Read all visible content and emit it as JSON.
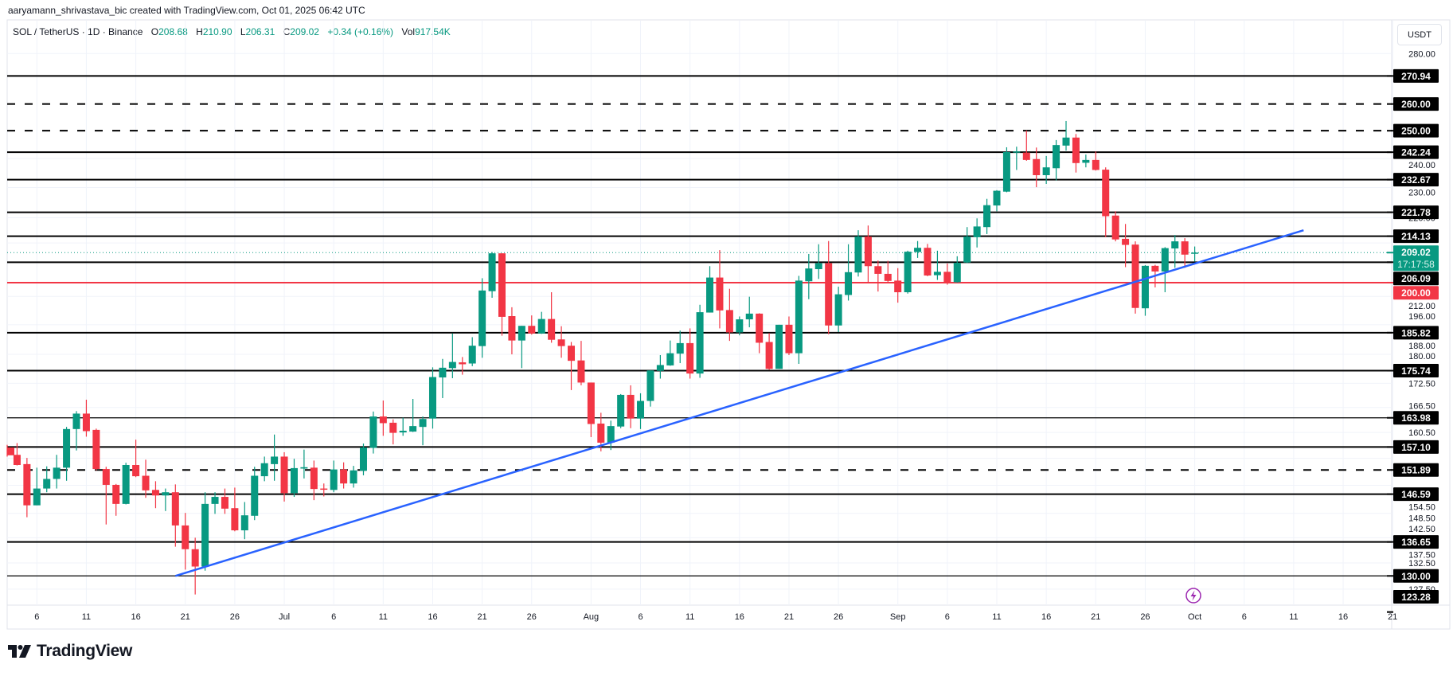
{
  "credit": "aaryamann_shrivastava_bic created with TradingView.com, Oct 01, 2025 06:42 UTC",
  "legend": {
    "symbol": "SOL / TetherUS · 1D · Binance",
    "o_label": "O",
    "o": "208.68",
    "h_label": "H",
    "h": "210.90",
    "l_label": "L",
    "l": "206.31",
    "c_label": "C",
    "c": "209.02",
    "change": "+0.34 (+0.16%)",
    "vol_label": "Vol",
    "vol": "917.54K"
  },
  "currency_button": "USDT",
  "brand": "TradingView",
  "event_icon": "lightning-icon",
  "colors": {
    "up": "#089981",
    "down": "#f23645",
    "trendline": "#2962ff",
    "level": "#000000",
    "level_red": "#f23645",
    "event": "#9c27b0"
  },
  "chart_data": {
    "type": "candlestick",
    "title": "",
    "xlabel": "",
    "ylabel": "",
    "y_scale": "log",
    "grid": true,
    "ylim": [
      123.28,
      280.0
    ],
    "candles_columns": [
      "date",
      "open",
      "high",
      "low",
      "close"
    ],
    "candles": [
      [
        "2025-06-03",
        157.0,
        157.6,
        154.9,
        155.2
      ],
      [
        "2025-06-04",
        155.3,
        158.0,
        152.9,
        153.0
      ],
      [
        "2025-06-05",
        153.2,
        154.6,
        141.7,
        144.2
      ],
      [
        "2025-06-06",
        144.2,
        152.4,
        144.2,
        147.8
      ],
      [
        "2025-06-07",
        147.8,
        152.7,
        147.0,
        149.9
      ],
      [
        "2025-06-08",
        149.9,
        155.3,
        147.8,
        152.4
      ],
      [
        "2025-06-09",
        152.4,
        161.8,
        149.5,
        161.3
      ],
      [
        "2025-06-10",
        161.3,
        165.6,
        156.3,
        165.0
      ],
      [
        "2025-06-11",
        165.0,
        168.4,
        159.5,
        160.8
      ],
      [
        "2025-06-12",
        161.1,
        161.4,
        151.8,
        152.1
      ],
      [
        "2025-06-13",
        152.1,
        152.6,
        140.2,
        148.6
      ],
      [
        "2025-06-14",
        148.6,
        148.8,
        142.0,
        144.5
      ],
      [
        "2025-06-15",
        144.5,
        153.5,
        144.4,
        153.0
      ],
      [
        "2025-06-16",
        153.0,
        158.8,
        150.3,
        150.5
      ],
      [
        "2025-06-17",
        150.6,
        154.2,
        145.8,
        147.4
      ],
      [
        "2025-06-18",
        147.5,
        149.4,
        143.6,
        146.3
      ],
      [
        "2025-06-19",
        146.3,
        147.8,
        143.0,
        147.0
      ],
      [
        "2025-06-20",
        147.0,
        148.7,
        135.7,
        140.0
      ],
      [
        "2025-06-21",
        140.0,
        142.6,
        131.2,
        135.2
      ],
      [
        "2025-06-22",
        135.2,
        137.5,
        126.5,
        131.8
      ],
      [
        "2025-06-23",
        131.8,
        147.0,
        131.0,
        144.5
      ],
      [
        "2025-06-24",
        144.5,
        147.0,
        142.4,
        146.0
      ],
      [
        "2025-06-25",
        146.0,
        147.8,
        142.4,
        143.5
      ],
      [
        "2025-06-26",
        143.6,
        148.0,
        138.8,
        139.0
      ],
      [
        "2025-06-27",
        139.0,
        144.9,
        137.2,
        142.1
      ],
      [
        "2025-06-28",
        142.0,
        152.6,
        141.1,
        150.6
      ],
      [
        "2025-06-29",
        150.5,
        154.9,
        149.4,
        153.4
      ],
      [
        "2025-06-30",
        153.2,
        160.0,
        149.5,
        154.9
      ],
      [
        "2025-07-01",
        154.9,
        155.9,
        145.0,
        146.8
      ],
      [
        "2025-07-02",
        146.8,
        154.4,
        146.0,
        152.3
      ],
      [
        "2025-07-03",
        152.2,
        156.5,
        150.0,
        152.5
      ],
      [
        "2025-07-04",
        152.4,
        154.0,
        145.3,
        147.7
      ],
      [
        "2025-07-05",
        147.8,
        148.9,
        146.1,
        147.7
      ],
      [
        "2025-07-06",
        147.5,
        154.0,
        147.0,
        152.0
      ],
      [
        "2025-07-07",
        152.0,
        153.6,
        147.8,
        148.9
      ],
      [
        "2025-07-08",
        148.9,
        152.8,
        148.0,
        151.8
      ],
      [
        "2025-07-09",
        151.7,
        157.9,
        150.7,
        157.0
      ],
      [
        "2025-07-10",
        156.9,
        165.5,
        155.6,
        164.3
      ],
      [
        "2025-07-11",
        164.3,
        168.2,
        159.7,
        162.7
      ],
      [
        "2025-07-12",
        162.8,
        163.6,
        157.7,
        160.4
      ],
      [
        "2025-07-13",
        160.5,
        164.0,
        159.7,
        160.9
      ],
      [
        "2025-07-14",
        160.7,
        168.6,
        160.6,
        162.0
      ],
      [
        "2025-07-15",
        161.8,
        164.3,
        157.5,
        163.7
      ],
      [
        "2025-07-16",
        163.8,
        176.6,
        161.4,
        174.1
      ],
      [
        "2025-07-17",
        174.0,
        178.8,
        168.8,
        176.5
      ],
      [
        "2025-07-18",
        176.4,
        185.6,
        173.8,
        178.0
      ],
      [
        "2025-07-19",
        177.9,
        179.3,
        174.7,
        177.4
      ],
      [
        "2025-07-20",
        177.6,
        184.6,
        176.9,
        182.3
      ],
      [
        "2025-07-21",
        182.2,
        201.3,
        179.1,
        197.7
      ],
      [
        "2025-07-22",
        197.5,
        209.2,
        195.6,
        208.8
      ],
      [
        "2025-07-23",
        208.8,
        208.8,
        185.0,
        190.2
      ],
      [
        "2025-07-24",
        190.4,
        192.9,
        180.0,
        183.7
      ],
      [
        "2025-07-25",
        183.7,
        187.7,
        176.4,
        187.7
      ],
      [
        "2025-07-26",
        187.7,
        190.6,
        185.3,
        185.6
      ],
      [
        "2025-07-27",
        185.6,
        191.6,
        185.5,
        189.6
      ],
      [
        "2025-07-28",
        189.6,
        197.2,
        183.1,
        183.9
      ],
      [
        "2025-07-29",
        184.0,
        187.6,
        179.1,
        182.2
      ],
      [
        "2025-07-30",
        182.3,
        183.3,
        170.8,
        178.3
      ],
      [
        "2025-07-31",
        178.4,
        183.6,
        172.0,
        172.7
      ],
      [
        "2025-08-01",
        172.7,
        172.7,
        159.4,
        162.5
      ],
      [
        "2025-08-02",
        162.6,
        165.2,
        156.1,
        158.1
      ],
      [
        "2025-08-03",
        158.1,
        163.3,
        156.4,
        162.0
      ],
      [
        "2025-08-04",
        161.9,
        169.8,
        161.5,
        169.6
      ],
      [
        "2025-08-05",
        169.6,
        172.0,
        161.5,
        163.8
      ],
      [
        "2025-08-06",
        163.8,
        170.0,
        161.3,
        168.1
      ],
      [
        "2025-08-07",
        168.1,
        175.8,
        166.7,
        175.8
      ],
      [
        "2025-08-08",
        175.7,
        179.8,
        173.7,
        177.2
      ],
      [
        "2025-08-09",
        177.1,
        183.7,
        177.0,
        180.3
      ],
      [
        "2025-08-10",
        180.2,
        186.4,
        177.7,
        183.0
      ],
      [
        "2025-08-11",
        183.0,
        187.0,
        173.7,
        175.0
      ],
      [
        "2025-08-12",
        175.0,
        193.6,
        173.9,
        191.5
      ],
      [
        "2025-08-13",
        191.4,
        204.9,
        191.4,
        201.5
      ],
      [
        "2025-08-14",
        201.5,
        209.8,
        187.0,
        192.0
      ],
      [
        "2025-08-15",
        192.1,
        198.2,
        183.6,
        185.9
      ],
      [
        "2025-08-16",
        185.9,
        190.3,
        185.1,
        189.5
      ],
      [
        "2025-08-17",
        189.5,
        195.9,
        187.3,
        191.1
      ],
      [
        "2025-08-18",
        191.1,
        191.2,
        180.3,
        183.1
      ],
      [
        "2025-08-19",
        183.3,
        185.7,
        176.0,
        176.2
      ],
      [
        "2025-08-20",
        176.2,
        188.0,
        176.2,
        188.0
      ],
      [
        "2025-08-21",
        188.0,
        190.3,
        179.8,
        180.3
      ],
      [
        "2025-08-22",
        180.3,
        202.0,
        177.5,
        200.6
      ],
      [
        "2025-08-23",
        200.4,
        208.6,
        195.2,
        204.2
      ],
      [
        "2025-08-24",
        204.0,
        211.6,
        201.1,
        205.8
      ],
      [
        "2025-08-25",
        205.8,
        212.6,
        185.4,
        187.8
      ],
      [
        "2025-08-26",
        187.8,
        198.8,
        186.0,
        196.6
      ],
      [
        "2025-08-27",
        196.4,
        211.6,
        194.8,
        203.1
      ],
      [
        "2025-08-28",
        203.0,
        216.0,
        201.8,
        214.0
      ],
      [
        "2025-08-29",
        214.0,
        217.5,
        199.8,
        204.9
      ],
      [
        "2025-08-30",
        204.9,
        206.6,
        197.4,
        202.6
      ],
      [
        "2025-08-31",
        202.6,
        206.5,
        200.2,
        200.5
      ],
      [
        "2025-09-01",
        200.6,
        204.3,
        194.2,
        197.2
      ],
      [
        "2025-09-02",
        197.2,
        209.6,
        196.8,
        209.3
      ],
      [
        "2025-09-03",
        209.2,
        212.6,
        207.4,
        210.5
      ],
      [
        "2025-09-04",
        210.5,
        211.7,
        201.9,
        202.1
      ],
      [
        "2025-09-05",
        202.2,
        209.6,
        200.8,
        203.2
      ],
      [
        "2025-09-06",
        203.2,
        205.7,
        199.4,
        200.0
      ],
      [
        "2025-09-07",
        200.1,
        207.9,
        200.0,
        205.9
      ],
      [
        "2025-09-08",
        206.0,
        217.0,
        205.8,
        214.0
      ],
      [
        "2025-09-09",
        213.8,
        219.8,
        210.6,
        217.2
      ],
      [
        "2025-09-10",
        217.0,
        226.2,
        214.8,
        224.1
      ],
      [
        "2025-09-11",
        224.0,
        229.1,
        222.1,
        228.9
      ],
      [
        "2025-09-12",
        228.6,
        244.0,
        228.4,
        242.3
      ],
      [
        "2025-09-13",
        242.3,
        244.2,
        236.0,
        242.5
      ],
      [
        "2025-09-14",
        242.1,
        250.1,
        239.2,
        239.5
      ],
      [
        "2025-09-15",
        239.8,
        243.9,
        230.1,
        234.2
      ],
      [
        "2025-09-16",
        234.2,
        240.9,
        231.2,
        236.9
      ],
      [
        "2025-09-17",
        236.6,
        246.6,
        232.4,
        244.8
      ],
      [
        "2025-09-18",
        244.6,
        253.6,
        242.8,
        247.5
      ],
      [
        "2025-09-19",
        247.5,
        248.8,
        235.1,
        238.4
      ],
      [
        "2025-09-20",
        238.5,
        241.4,
        236.9,
        239.5
      ],
      [
        "2025-09-21",
        239.5,
        242.5,
        235.8,
        236.0
      ],
      [
        "2025-09-22",
        236.1,
        236.9,
        213.8,
        220.5
      ],
      [
        "2025-09-23",
        220.7,
        222.1,
        212.5,
        213.1
      ],
      [
        "2025-09-24",
        213.3,
        218.0,
        204.6,
        211.4
      ],
      [
        "2025-09-25",
        211.5,
        212.5,
        191.1,
        192.7
      ],
      [
        "2025-09-26",
        192.6,
        205.2,
        190.5,
        205.0
      ],
      [
        "2025-09-27",
        205.0,
        205.3,
        198.6,
        203.3
      ],
      [
        "2025-09-28",
        203.3,
        210.7,
        197.2,
        210.4
      ],
      [
        "2025-09-29",
        210.3,
        214.5,
        204.4,
        212.5
      ],
      [
        "2025-09-30",
        212.5,
        213.5,
        204.4,
        208.4
      ],
      [
        "2025-10-01",
        208.68,
        210.9,
        206.31,
        209.02
      ]
    ],
    "levels": [
      {
        "price": 270.94,
        "label": "270.94",
        "style": "solid",
        "color": "#000000"
      },
      {
        "price": 260.0,
        "label": "260.00",
        "style": "dashed",
        "color": "#000000"
      },
      {
        "price": 250.0,
        "label": "250.00",
        "style": "dashed",
        "color": "#000000"
      },
      {
        "price": 242.24,
        "label": "242.24",
        "style": "solid",
        "color": "#000000"
      },
      {
        "price": 232.67,
        "label": "232.67",
        "style": "solid",
        "color": "#000000"
      },
      {
        "price": 221.78,
        "label": "221.78",
        "style": "solid",
        "color": "#000000"
      },
      {
        "price": 214.13,
        "label": "214.13",
        "style": "solid",
        "color": "#000000"
      },
      {
        "price": 206.09,
        "label": "206.09",
        "style": "solid",
        "color": "#000000"
      },
      {
        "price": 200.0,
        "label": "200.00",
        "style": "solid",
        "color": "#f23645"
      },
      {
        "price": 185.82,
        "label": "185.82",
        "style": "solid",
        "color": "#000000"
      },
      {
        "price": 175.74,
        "label": "175.74",
        "style": "solid",
        "color": "#000000"
      },
      {
        "price": 163.98,
        "label": "163.98",
        "style": "thin",
        "color": "#000000"
      },
      {
        "price": 157.1,
        "label": "157.10",
        "style": "solid",
        "color": "#000000"
      },
      {
        "price": 151.89,
        "label": "151.89",
        "style": "dashed",
        "color": "#000000"
      },
      {
        "price": 146.59,
        "label": "146.59",
        "style": "solid",
        "color": "#000000"
      },
      {
        "price": 136.65,
        "label": "136.65",
        "style": "solid",
        "color": "#000000"
      },
      {
        "price": 130.0,
        "label": "130.00",
        "style": "thin",
        "color": "#000000"
      },
      {
        "price": 123.28,
        "label": "123.28",
        "style": "offscreen",
        "color": "#000000"
      }
    ],
    "current_price": {
      "price": 209.02,
      "label": "209.02",
      "countdown": "17:17:58",
      "color": "#089981"
    },
    "trendline": {
      "points": [
        {
          "date": "2025-06-20",
          "price": 130.0
        },
        {
          "date": "2025-10-12",
          "price": 216.0
        }
      ],
      "color": "#2962ff"
    },
    "event_marker": {
      "date": "2025-10-01"
    },
    "y_ticks": [
      "280.00",
      "240.00",
      "230.00",
      "220.00",
      "212.00",
      "196.00",
      "188.00",
      "180.00",
      "172.50",
      "166.50",
      "160.50",
      "154.50",
      "148.50",
      "142.50",
      "137.50",
      "132.50",
      "127.50"
    ],
    "x_ticks": [
      {
        "label": "6",
        "date": "2025-06-06"
      },
      {
        "label": "11",
        "date": "2025-06-11"
      },
      {
        "label": "16",
        "date": "2025-06-16"
      },
      {
        "label": "21",
        "date": "2025-06-21"
      },
      {
        "label": "26",
        "date": "2025-06-26"
      },
      {
        "label": "Jul",
        "date": "2025-07-01"
      },
      {
        "label": "6",
        "date": "2025-07-06"
      },
      {
        "label": "11",
        "date": "2025-07-11"
      },
      {
        "label": "16",
        "date": "2025-07-16"
      },
      {
        "label": "21",
        "date": "2025-07-21"
      },
      {
        "label": "26",
        "date": "2025-07-26"
      },
      {
        "label": "Aug",
        "date": "2025-08-01"
      },
      {
        "label": "6",
        "date": "2025-08-06"
      },
      {
        "label": "11",
        "date": "2025-08-11"
      },
      {
        "label": "16",
        "date": "2025-08-16"
      },
      {
        "label": "21",
        "date": "2025-08-21"
      },
      {
        "label": "26",
        "date": "2025-08-26"
      },
      {
        "label": "Sep",
        "date": "2025-09-01"
      },
      {
        "label": "6",
        "date": "2025-09-06"
      },
      {
        "label": "11",
        "date": "2025-09-11"
      },
      {
        "label": "16",
        "date": "2025-09-16"
      },
      {
        "label": "21",
        "date": "2025-09-21"
      },
      {
        "label": "26",
        "date": "2025-09-26"
      },
      {
        "label": "Oct",
        "date": "2025-10-01"
      },
      {
        "label": "6",
        "date": "2025-10-06"
      },
      {
        "label": "11",
        "date": "2025-10-11"
      },
      {
        "label": "16",
        "date": "2025-10-16"
      },
      {
        "label": "21",
        "date": "2025-10-21"
      }
    ]
  }
}
